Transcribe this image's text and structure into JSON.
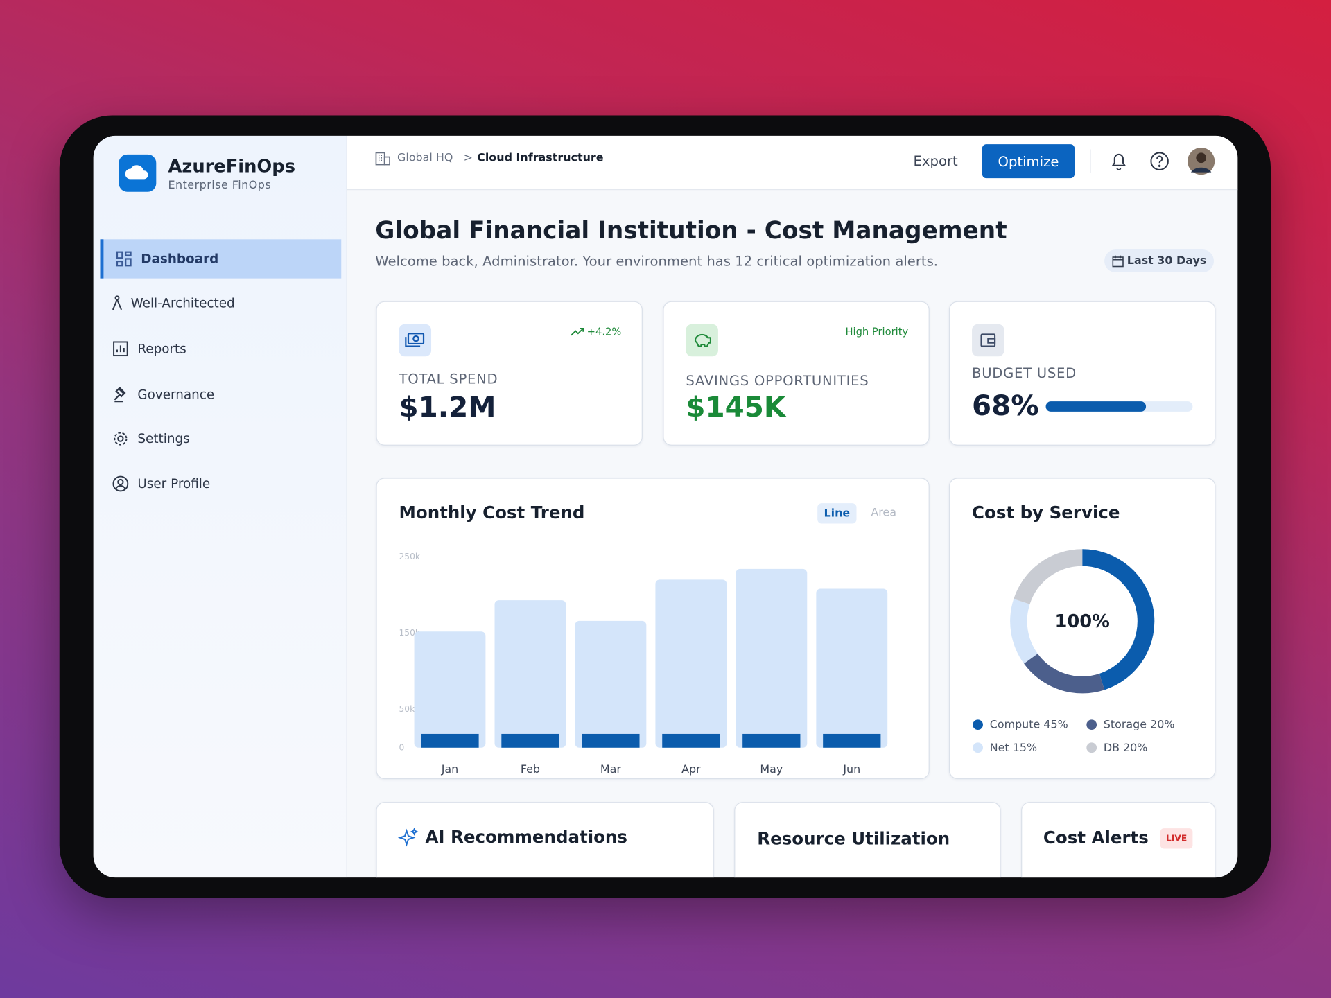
{
  "sidebar": {
    "brand": "AzureFinOps",
    "subtitle": "Enterprise FinOps",
    "nav": [
      "Dashboard",
      "Well-Architected",
      "Reports",
      "Governance",
      "Settings",
      "User Profile"
    ]
  },
  "topbar": {
    "breadcrumb": [
      "Global HQ",
      "Cloud Infrastructure"
    ],
    "export": "Export",
    "optimize": "Optimize"
  },
  "header": {
    "title": "Global Financial Institution - Cost Management",
    "subtitle": "Welcome back, Administrator. Your environment has 12 critical optimization alerts.",
    "date_range": "Last 30 Days"
  },
  "kpis": [
    {
      "label": "TOTAL SPEND",
      "value": "$1.2M",
      "badge": "+4.2%"
    },
    {
      "label": "SAVINGS OPPORTUNITIES",
      "value": "$145K",
      "badge": "High Priority"
    },
    {
      "label": "BUDGET USED",
      "value": 68,
      "value_label": "68%"
    }
  ],
  "chart_data": [
    {
      "type": "bar",
      "title": "Monthly Cost Trend",
      "toggle": [
        "Line",
        "Area"
      ],
      "categories": [
        "Jan",
        "Feb",
        "Mar",
        "Apr",
        "May",
        "Jun"
      ],
      "series": [
        {
          "color": "#d4e5fa",
          "values": [
            152000,
            193000,
            166000,
            220000,
            234000,
            208000
          ]
        },
        {
          "color": "#0b5cad",
          "values": [
            18000,
            18000,
            18000,
            18000,
            18000,
            18000
          ]
        }
      ],
      "ylim": [
        0,
        250000
      ],
      "yticks": [
        0,
        {
          "value": 50000,
          "label": "50k"
        },
        {
          "value": 150000,
          "label": "150k"
        },
        {
          "value": 250000,
          "label": "250k"
        }
      ]
    },
    {
      "type": "pie",
      "title": "Cost by Service",
      "center_label": "100%",
      "categories": [
        "Compute",
        "Storage",
        "Net",
        "DB"
      ],
      "values": [
        45,
        20,
        15,
        20
      ],
      "value_labels": [
        "45%",
        "20%",
        "15%",
        "20%"
      ],
      "colors": [
        "#0b5cad",
        "#4c5f8c",
        "#d4e5fa",
        "#c9ccd3"
      ]
    }
  ],
  "panels": [
    "AI Recommendations",
    "Resource Utilization",
    "Cost Alerts"
  ],
  "live_badge": "LIVE"
}
